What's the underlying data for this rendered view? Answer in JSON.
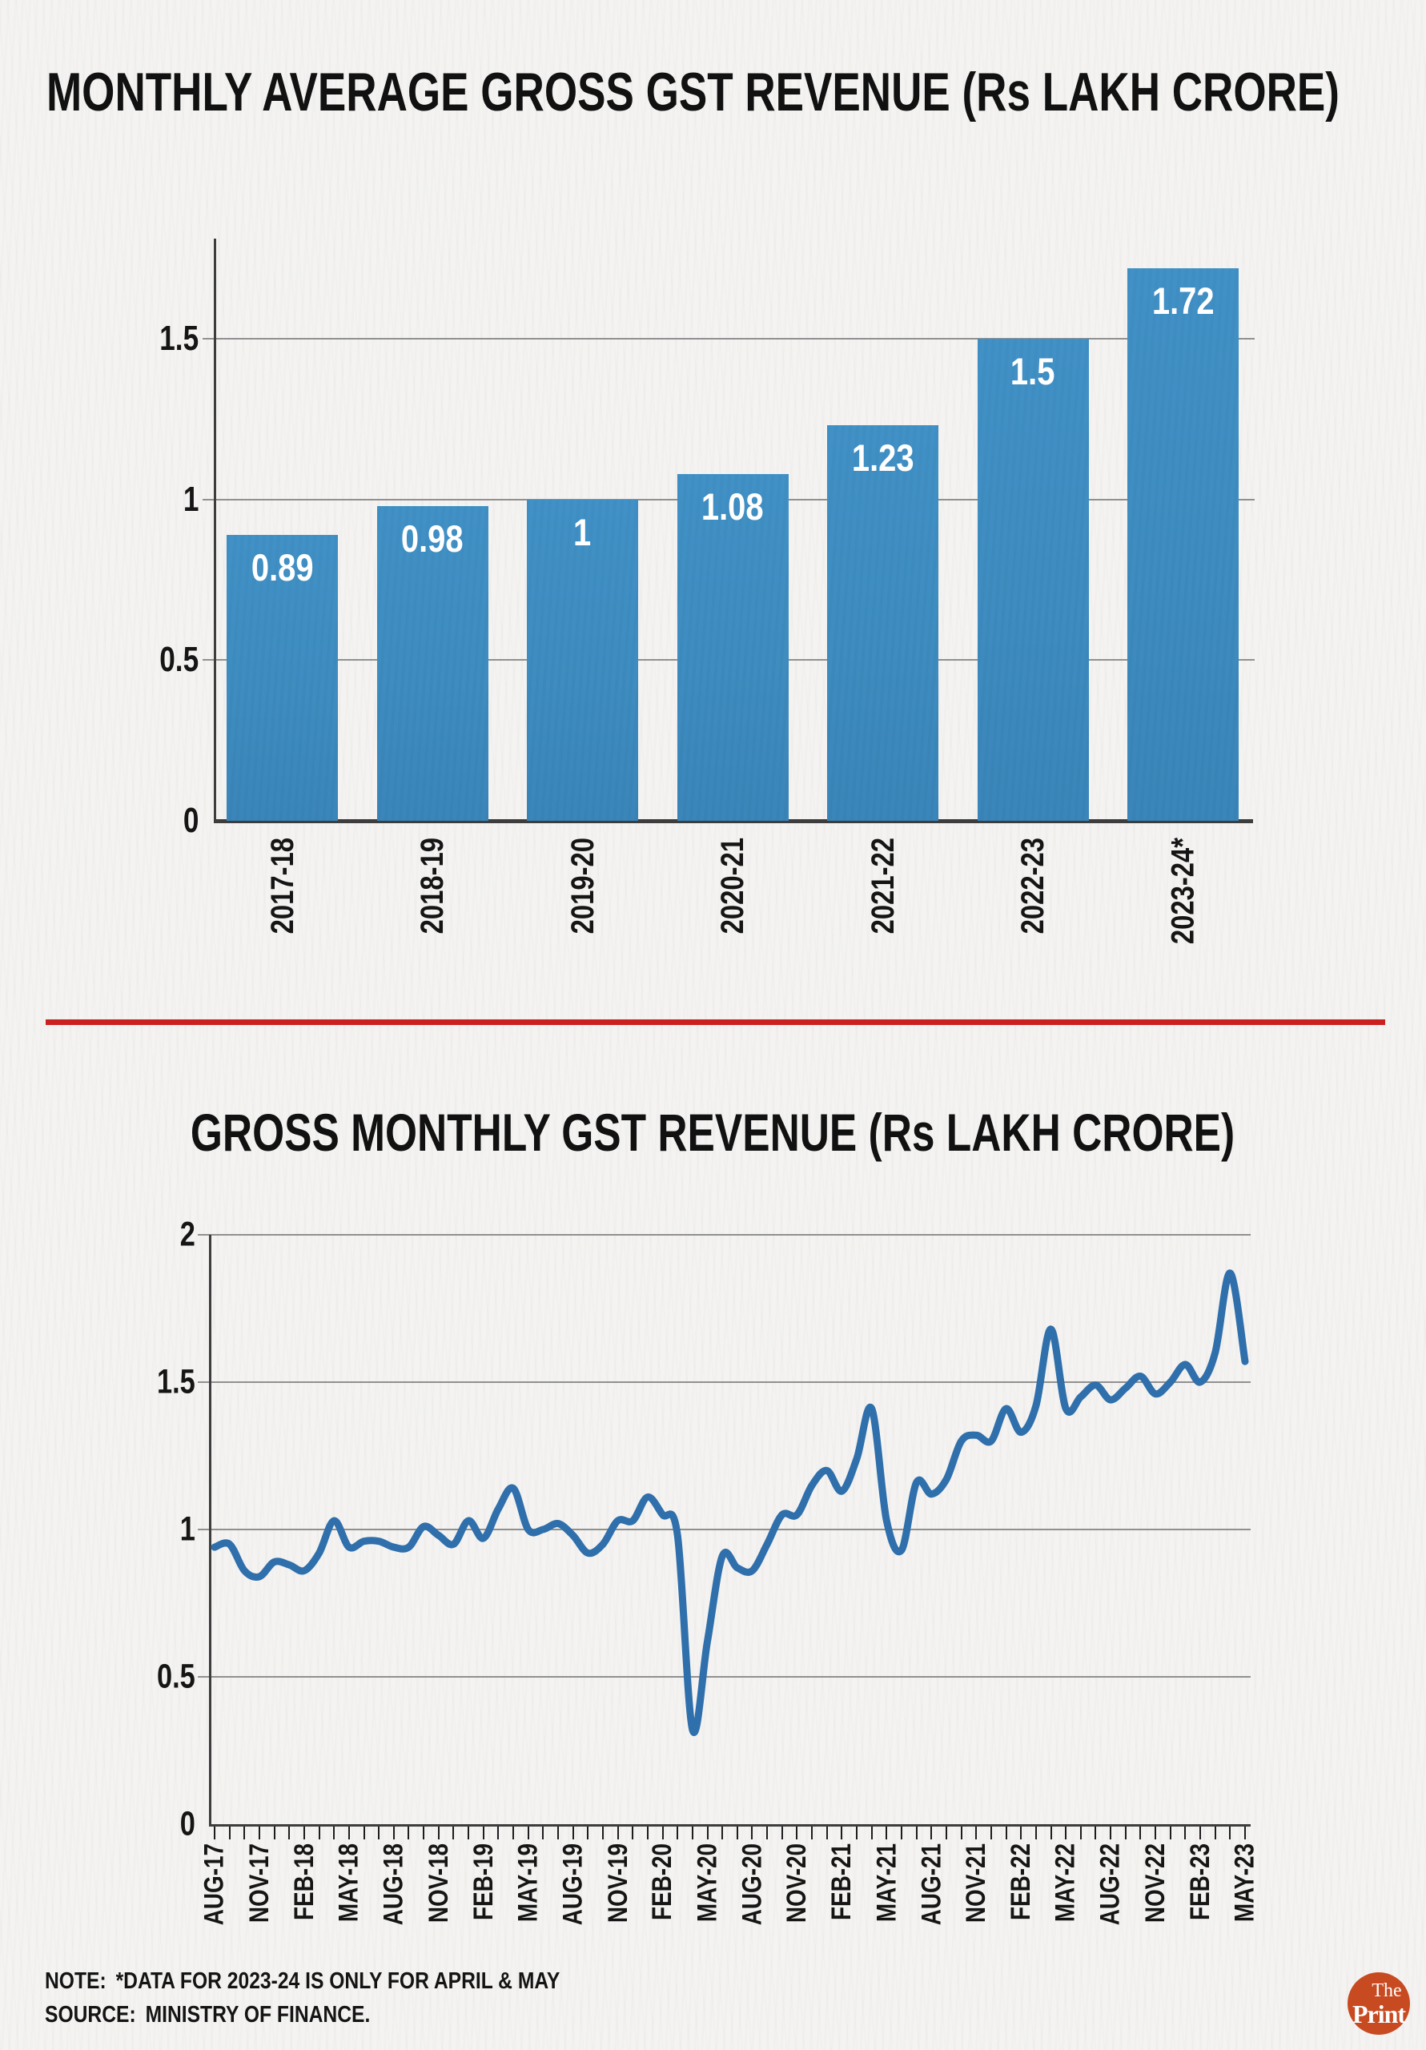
{
  "page": {
    "background": "#f4f3f1",
    "accent_red": "#cb2020"
  },
  "footer": {
    "note_label": "NOTE:",
    "note_text": "*DATA FOR 2023-24 IS ONLY FOR APRIL & MAY",
    "source_label": "SOURCE:",
    "source_text": "MINISTRY OF FINANCE.",
    "logo_line1": "The",
    "logo_line2": "Print",
    "logo_color": "#c84a21"
  },
  "chart_data": [
    {
      "type": "bar",
      "title": "MONTHLY AVERAGE GROSS GST REVENUE (Rs LAKH CRORE)",
      "categories": [
        "2017-18",
        "2018-19",
        "2019-20",
        "2020-21",
        "2021-22",
        "2022-23",
        "2023-24*"
      ],
      "values": [
        0.89,
        0.98,
        1,
        1.08,
        1.23,
        1.5,
        1.72
      ],
      "bar_labels": [
        "0.89",
        "0.98",
        "1",
        "1.08",
        "1.23",
        "1.5",
        "1.72"
      ],
      "ytick_values": [
        0,
        0.5,
        1,
        1.5
      ],
      "ytick_labels": [
        "0",
        "0.5",
        "1",
        "1.5"
      ],
      "ylim": [
        0,
        1.81
      ],
      "grid": true,
      "bar_color": "#3e8cc0",
      "value_label_color": "#ffffff"
    },
    {
      "type": "line",
      "title": "GROSS MONTHLY GST REVENUE (Rs LAKH CRORE)",
      "x_start": "AUG-17",
      "x_end": "MAY-23",
      "x_interval": "monthly",
      "tick_labels": [
        "AUG-17",
        "NOV-17",
        "FEB-18",
        "MAY-18",
        "AUG-18",
        "NOV-18",
        "FEB-19",
        "MAY-19",
        "AUG-19",
        "NOV-19",
        "FEB-20",
        "MAY-20",
        "AUG-20",
        "NOV-20",
        "FEB-21",
        "MAY-21",
        "AUG-21",
        "NOV-21",
        "FEB-22",
        "MAY-22",
        "AUG-22",
        "NOV-22",
        "FEB-23",
        "MAY-23"
      ],
      "label_every_n_months": 3,
      "values": [
        0.94,
        0.95,
        0.86,
        0.84,
        0.89,
        0.88,
        0.86,
        0.92,
        1.03,
        0.94,
        0.96,
        0.96,
        0.94,
        0.94,
        1.01,
        0.98,
        0.95,
        1.03,
        0.97,
        1.07,
        1.14,
        1.0,
        1.0,
        1.02,
        0.98,
        0.92,
        0.95,
        1.03,
        1.03,
        1.11,
        1.05,
        0.98,
        0.32,
        0.62,
        0.91,
        0.87,
        0.86,
        0.95,
        1.05,
        1.05,
        1.15,
        1.2,
        1.13,
        1.24,
        1.41,
        1.03,
        0.93,
        1.16,
        1.12,
        1.17,
        1.3,
        1.32,
        1.3,
        1.41,
        1.33,
        1.42,
        1.68,
        1.41,
        1.45,
        1.49,
        1.44,
        1.48,
        1.52,
        1.46,
        1.5,
        1.56,
        1.5,
        1.6,
        1.87,
        1.57
      ],
      "ytick_values": [
        0,
        0.5,
        1,
        1.5,
        2
      ],
      "ytick_labels": [
        "0",
        "0.5",
        "1",
        "1.5",
        "2"
      ],
      "ylim": [
        0,
        2
      ],
      "grid": true,
      "line_color": "#2f6fab"
    }
  ]
}
